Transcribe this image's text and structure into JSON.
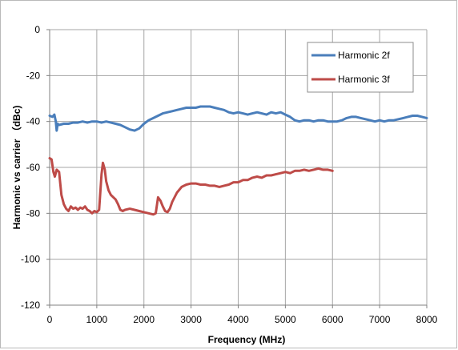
{
  "chart_data": {
    "type": "line",
    "title": "",
    "xlabel": "Frequency (MHz)",
    "ylabel": "Harmonic vs carrier （dBc)",
    "xlim": [
      0,
      8000
    ],
    "ylim": [
      -120,
      0
    ],
    "x_ticks": [
      0,
      1000,
      2000,
      3000,
      4000,
      5000,
      6000,
      7000,
      8000
    ],
    "y_ticks": [
      0,
      -20,
      -40,
      -60,
      -80,
      -100,
      -120
    ],
    "grid": true,
    "legend_position": "top-right",
    "series": [
      {
        "name": "Harmonic 2f",
        "color": "#4a7ebb",
        "points": [
          [
            0,
            -37.5
          ],
          [
            60,
            -38
          ],
          [
            100,
            -37
          ],
          [
            130,
            -40
          ],
          [
            150,
            -44
          ],
          [
            170,
            -41
          ],
          [
            200,
            -41.5
          ],
          [
            300,
            -41
          ],
          [
            400,
            -41
          ],
          [
            500,
            -40.5
          ],
          [
            600,
            -40.5
          ],
          [
            700,
            -40
          ],
          [
            800,
            -40.5
          ],
          [
            900,
            -40
          ],
          [
            1000,
            -40
          ],
          [
            1100,
            -40.5
          ],
          [
            1200,
            -40
          ],
          [
            1300,
            -40.5
          ],
          [
            1400,
            -41
          ],
          [
            1500,
            -41.5
          ],
          [
            1600,
            -42.5
          ],
          [
            1700,
            -43.5
          ],
          [
            1800,
            -44
          ],
          [
            1900,
            -43
          ],
          [
            2000,
            -41
          ],
          [
            2100,
            -39.5
          ],
          [
            2200,
            -38.5
          ],
          [
            2300,
            -37.5
          ],
          [
            2400,
            -36.5
          ],
          [
            2500,
            -36
          ],
          [
            2600,
            -35.5
          ],
          [
            2700,
            -35
          ],
          [
            2800,
            -34.5
          ],
          [
            2900,
            -34
          ],
          [
            3000,
            -34
          ],
          [
            3100,
            -34
          ],
          [
            3200,
            -33.5
          ],
          [
            3300,
            -33.5
          ],
          [
            3400,
            -33.5
          ],
          [
            3500,
            -34
          ],
          [
            3600,
            -34.5
          ],
          [
            3700,
            -35
          ],
          [
            3800,
            -36
          ],
          [
            3900,
            -36.5
          ],
          [
            4000,
            -36
          ],
          [
            4100,
            -36.5
          ],
          [
            4200,
            -37
          ],
          [
            4300,
            -36.5
          ],
          [
            4400,
            -36
          ],
          [
            4500,
            -36.5
          ],
          [
            4600,
            -37
          ],
          [
            4700,
            -36
          ],
          [
            4800,
            -36.5
          ],
          [
            4900,
            -36
          ],
          [
            5000,
            -37
          ],
          [
            5100,
            -38
          ],
          [
            5200,
            -39.5
          ],
          [
            5300,
            -40
          ],
          [
            5400,
            -39.5
          ],
          [
            5500,
            -39.5
          ],
          [
            5600,
            -40
          ],
          [
            5700,
            -39.5
          ],
          [
            5800,
            -39.5
          ],
          [
            5900,
            -40
          ],
          [
            6000,
            -40
          ],
          [
            6100,
            -40
          ],
          [
            6200,
            -39.5
          ],
          [
            6300,
            -38.5
          ],
          [
            6400,
            -38
          ],
          [
            6500,
            -38
          ],
          [
            6600,
            -38.5
          ],
          [
            6700,
            -39
          ],
          [
            6800,
            -39.5
          ],
          [
            6900,
            -40
          ],
          [
            7000,
            -39.5
          ],
          [
            7100,
            -40
          ],
          [
            7200,
            -39.5
          ],
          [
            7300,
            -39.5
          ],
          [
            7400,
            -39
          ],
          [
            7500,
            -38.5
          ],
          [
            7600,
            -38
          ],
          [
            7700,
            -37.5
          ],
          [
            7800,
            -37.5
          ],
          [
            7900,
            -38
          ],
          [
            8000,
            -38.5
          ]
        ]
      },
      {
        "name": "Harmonic 3f",
        "color": "#be4b48",
        "points": [
          [
            0,
            -56
          ],
          [
            40,
            -56.5
          ],
          [
            80,
            -62
          ],
          [
            110,
            -64
          ],
          [
            150,
            -61
          ],
          [
            200,
            -62
          ],
          [
            250,
            -72
          ],
          [
            300,
            -76
          ],
          [
            350,
            -78
          ],
          [
            400,
            -79
          ],
          [
            450,
            -77
          ],
          [
            500,
            -78
          ],
          [
            550,
            -77.5
          ],
          [
            600,
            -78.5
          ],
          [
            650,
            -77.5
          ],
          [
            700,
            -78
          ],
          [
            750,
            -77
          ],
          [
            800,
            -78.5
          ],
          [
            850,
            -79
          ],
          [
            900,
            -80
          ],
          [
            950,
            -79
          ],
          [
            1000,
            -79.5
          ],
          [
            1050,
            -78.5
          ],
          [
            1100,
            -63
          ],
          [
            1130,
            -58
          ],
          [
            1170,
            -61
          ],
          [
            1200,
            -66
          ],
          [
            1250,
            -70
          ],
          [
            1300,
            -72
          ],
          [
            1350,
            -73
          ],
          [
            1400,
            -74
          ],
          [
            1450,
            -76
          ],
          [
            1500,
            -78.5
          ],
          [
            1550,
            -79
          ],
          [
            1600,
            -78.5
          ],
          [
            1700,
            -78
          ],
          [
            1800,
            -78.5
          ],
          [
            1900,
            -79
          ],
          [
            2000,
            -79.5
          ],
          [
            2100,
            -80
          ],
          [
            2200,
            -80.5
          ],
          [
            2250,
            -80
          ],
          [
            2300,
            -73
          ],
          [
            2350,
            -74.5
          ],
          [
            2400,
            -77
          ],
          [
            2450,
            -79
          ],
          [
            2500,
            -79.5
          ],
          [
            2550,
            -78
          ],
          [
            2600,
            -75
          ],
          [
            2700,
            -71
          ],
          [
            2800,
            -68.5
          ],
          [
            2900,
            -67.5
          ],
          [
            3000,
            -67
          ],
          [
            3100,
            -67
          ],
          [
            3200,
            -67.5
          ],
          [
            3300,
            -67.5
          ],
          [
            3400,
            -68
          ],
          [
            3500,
            -68
          ],
          [
            3600,
            -68.5
          ],
          [
            3700,
            -68
          ],
          [
            3800,
            -67.5
          ],
          [
            3900,
            -66.5
          ],
          [
            4000,
            -66.5
          ],
          [
            4100,
            -65.5
          ],
          [
            4200,
            -65.5
          ],
          [
            4300,
            -64.5
          ],
          [
            4400,
            -64
          ],
          [
            4500,
            -64.5
          ],
          [
            4600,
            -63.5
          ],
          [
            4700,
            -63.5
          ],
          [
            4800,
            -63
          ],
          [
            4900,
            -62.5
          ],
          [
            5000,
            -62
          ],
          [
            5100,
            -62.5
          ],
          [
            5200,
            -61.5
          ],
          [
            5300,
            -61.5
          ],
          [
            5400,
            -61
          ],
          [
            5500,
            -61.5
          ],
          [
            5600,
            -61
          ],
          [
            5700,
            -60.5
          ],
          [
            5800,
            -61
          ],
          [
            5900,
            -61
          ],
          [
            6000,
            -61.5
          ]
        ]
      }
    ]
  }
}
